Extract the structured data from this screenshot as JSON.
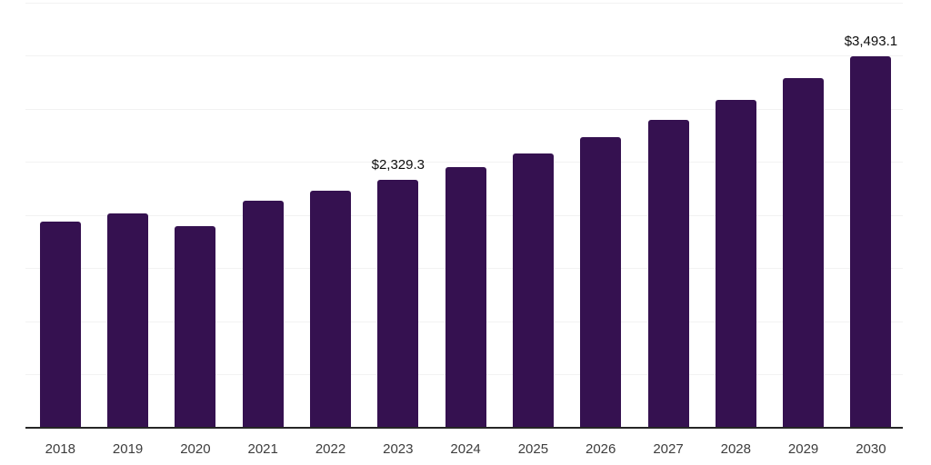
{
  "chart_data": {
    "type": "bar",
    "title": "",
    "xlabel": "",
    "ylabel": "",
    "categories": [
      "2018",
      "2019",
      "2020",
      "2021",
      "2022",
      "2023",
      "2024",
      "2025",
      "2026",
      "2027",
      "2028",
      "2029",
      "2030"
    ],
    "values": [
      1940,
      2015,
      1890,
      2135,
      2230,
      2329.3,
      2450,
      2580,
      2735,
      2890,
      3080,
      3285,
      3493.1
    ],
    "data_labels": [
      "",
      "",
      "",
      "",
      "",
      "$2,329.3",
      "",
      "",
      "",
      "",
      "",
      "",
      "$3,493.1"
    ],
    "ylim": [
      0,
      4000
    ],
    "gridline_step": 500,
    "grid": true,
    "y_tick_labels_shown": false,
    "legend": "none"
  },
  "style": {
    "bar_color": "#351150",
    "axis_color": "#262626",
    "gridline_color": "#f2f2f2",
    "data_label_color": "#0d0d0d",
    "tick_label_color": "#3d3d3d",
    "background_color": "#ffffff"
  }
}
